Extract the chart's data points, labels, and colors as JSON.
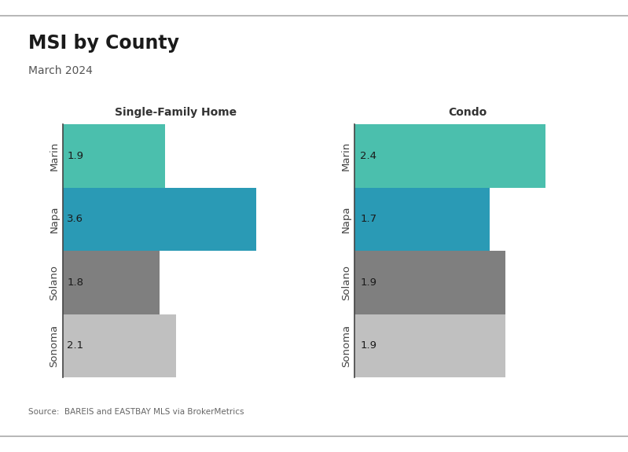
{
  "title": "MSI by County",
  "subtitle": "March 2024",
  "source": "Source:  BAREIS and EASTBAY MLS via BrokerMetrics",
  "categories": [
    "Marin",
    "Napa",
    "Solano",
    "Sonoma"
  ],
  "sfh_values": [
    1.9,
    3.6,
    1.8,
    2.1
  ],
  "condo_values": [
    2.4,
    1.7,
    1.9,
    1.9
  ],
  "sfh_colors": [
    "#4bbfad",
    "#2a9ab5",
    "#7f7f7f",
    "#c0c0c0"
  ],
  "condo_colors": [
    "#4bbfad",
    "#2a9ab5",
    "#7f7f7f",
    "#c0c0c0"
  ],
  "sfh_title": "Single-Family Home",
  "condo_title": "Condo",
  "bar_height": 1.0,
  "xlim_sfh": [
    0,
    4.2
  ],
  "xlim_condo": [
    0,
    2.85
  ],
  "background_color": "#ffffff",
  "title_fontsize": 17,
  "subtitle_fontsize": 10,
  "label_fontsize": 9.5,
  "value_fontsize": 9.5,
  "axis_title_fontsize": 10,
  "source_fontsize": 7.5
}
